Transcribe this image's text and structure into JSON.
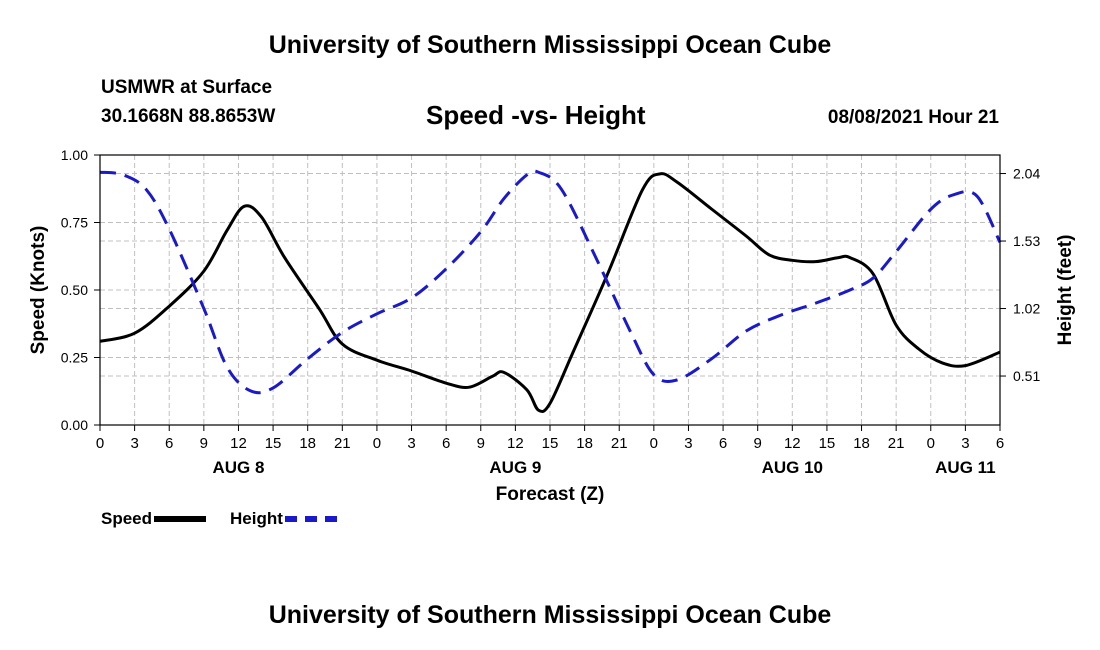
{
  "header": {
    "top_title": "University of Southern Mississippi Ocean Cube",
    "station": "USMWR at Surface",
    "coords": "30.1668N  88.8653W",
    "plot_title": "Speed -vs- Height",
    "datetime": "08/08/2021 Hour 21",
    "bottom_title": "University of Southern Mississippi Ocean Cube"
  },
  "legend": {
    "speed_label": "Speed",
    "height_label": "Height"
  },
  "colors": {
    "speed": "#000000",
    "height": "#1a1acc",
    "grid": "#c0c0c0"
  },
  "chart_data": {
    "type": "line",
    "title": "Speed -vs- Height",
    "xlabel": "Forecast (Z)",
    "ylabel": "Speed (Knots)",
    "y2label": "Height (feet)",
    "xlim": [
      0,
      78
    ],
    "ylim": [
      0,
      1.0
    ],
    "y2lim": [
      0.14,
      2.18
    ],
    "x_ticks": [
      0,
      3,
      6,
      9,
      12,
      15,
      18,
      21,
      24,
      27,
      30,
      33,
      36,
      39,
      42,
      45,
      48,
      51,
      54,
      57,
      60,
      63,
      66,
      69,
      72,
      75,
      78
    ],
    "x_tick_labels": [
      "0",
      "3",
      "6",
      "9",
      "12",
      "15",
      "18",
      "21",
      "0",
      "3",
      "6",
      "9",
      "12",
      "15",
      "18",
      "21",
      "0",
      "3",
      "6",
      "9",
      "12",
      "15",
      "18",
      "21",
      "0",
      "3",
      "6"
    ],
    "day_labels": [
      {
        "x": 12,
        "label": "AUG 8"
      },
      {
        "x": 36,
        "label": "AUG 9"
      },
      {
        "x": 60,
        "label": "AUG 10"
      },
      {
        "x": 75,
        "label": "AUG 11"
      }
    ],
    "y_ticks": [
      0,
      0.25,
      0.5,
      0.75,
      1.0
    ],
    "y_tick_labels": [
      "0.00",
      "0.25",
      "0.50",
      "0.75",
      "1.00"
    ],
    "y2_ticks": [
      0.51,
      1.02,
      1.53,
      2.04
    ],
    "y2_tick_labels": [
      "0.51",
      "1.02",
      "1.53",
      "2.04"
    ],
    "grid": true,
    "series": [
      {
        "name": "Speed",
        "axis": "left",
        "style": "solid",
        "x": [
          0,
          3,
          6,
          9,
          11,
          12.5,
          14,
          16,
          19,
          21,
          24,
          27,
          30,
          32,
          34,
          35,
          37,
          38,
          39,
          41,
          44,
          47,
          48.5,
          50,
          53,
          56,
          58,
          60,
          62,
          64,
          65,
          67,
          69,
          71,
          73,
          75,
          78
        ],
        "values": [
          0.31,
          0.34,
          0.44,
          0.57,
          0.72,
          0.81,
          0.77,
          0.62,
          0.43,
          0.3,
          0.24,
          0.2,
          0.155,
          0.14,
          0.18,
          0.195,
          0.13,
          0.055,
          0.08,
          0.27,
          0.56,
          0.87,
          0.93,
          0.9,
          0.8,
          0.7,
          0.63,
          0.61,
          0.605,
          0.62,
          0.62,
          0.56,
          0.37,
          0.28,
          0.23,
          0.22,
          0.27
        ]
      },
      {
        "name": "Height",
        "axis": "right",
        "style": "dashed",
        "x": [
          0,
          2,
          4,
          6,
          9,
          11,
          13,
          15,
          18,
          21,
          24,
          27,
          30,
          33,
          35,
          37,
          38,
          40,
          43,
          46,
          48,
          50,
          53,
          56,
          59,
          62,
          65,
          67,
          69,
          72,
          74,
          76,
          78
        ],
        "values": [
          2.05,
          2.03,
          1.92,
          1.62,
          1.02,
          0.58,
          0.4,
          0.42,
          0.64,
          0.84,
          0.98,
          1.1,
          1.32,
          1.6,
          1.85,
          2.03,
          2.05,
          1.92,
          1.4,
          0.84,
          0.52,
          0.48,
          0.64,
          0.85,
          0.97,
          1.06,
          1.16,
          1.25,
          1.45,
          1.77,
          1.88,
          1.87,
          1.52
        ]
      }
    ]
  }
}
